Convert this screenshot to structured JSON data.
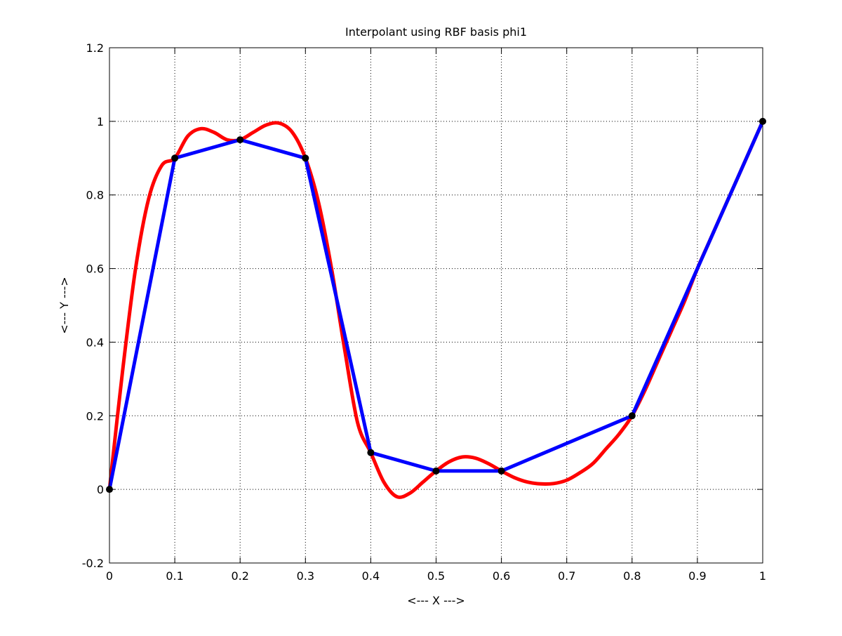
{
  "chart_data": {
    "type": "line",
    "title": "Interpolant using RBF basis phi1",
    "xlabel": "<--- X --->",
    "ylabel": "<--- Y --->",
    "xlim": [
      0,
      1
    ],
    "ylim": [
      -0.2,
      1.2
    ],
    "xticks": [
      0,
      0.1,
      0.2,
      0.3,
      0.4,
      0.5,
      0.6,
      0.7,
      0.8,
      0.9,
      1
    ],
    "xtick_labels": [
      "0",
      "0.1",
      "0.2",
      "0.3",
      "0.4",
      "0.5",
      "0.6",
      "0.7",
      "0.8",
      "0.9",
      "1"
    ],
    "yticks": [
      -0.2,
      0,
      0.2,
      0.4,
      0.6,
      0.8,
      1,
      1.2
    ],
    "ytick_labels": [
      "-0.2",
      "0",
      "0.2",
      "0.4",
      "0.6",
      "0.8",
      "1",
      "1.2"
    ],
    "grid": true,
    "legend": "none",
    "series": [
      {
        "color": "#ff0000",
        "style": "smooth-curve",
        "x": [
          0,
          0.02,
          0.04,
          0.06,
          0.08,
          0.1,
          0.12,
          0.14,
          0.16,
          0.18,
          0.2,
          0.22,
          0.24,
          0.26,
          0.28,
          0.3,
          0.32,
          0.34,
          0.36,
          0.38,
          0.4,
          0.42,
          0.44,
          0.46,
          0.48,
          0.5,
          0.52,
          0.54,
          0.56,
          0.58,
          0.6,
          0.62,
          0.64,
          0.66,
          0.68,
          0.7,
          0.72,
          0.74,
          0.76,
          0.78,
          0.8,
          0.82,
          0.84,
          0.86,
          0.88,
          0.9,
          0.92,
          0.94,
          0.96,
          0.98,
          1.0
        ],
        "y": [
          0,
          0.32,
          0.6,
          0.79,
          0.88,
          0.9,
          0.96,
          0.98,
          0.97,
          0.95,
          0.95,
          0.97,
          0.99,
          0.995,
          0.97,
          0.9,
          0.78,
          0.6,
          0.38,
          0.18,
          0.1,
          0.02,
          -0.02,
          -0.01,
          0.02,
          0.05,
          0.075,
          0.088,
          0.085,
          0.07,
          0.05,
          0.032,
          0.02,
          0.015,
          0.016,
          0.025,
          0.045,
          0.07,
          0.11,
          0.15,
          0.2,
          0.27,
          0.35,
          0.43,
          0.51,
          0.6,
          0.68,
          0.76,
          0.84,
          0.92,
          1.0
        ]
      },
      {
        "color": "#0000ff",
        "style": "piecewise-linear",
        "x": [
          0,
          0.1,
          0.2,
          0.3,
          0.4,
          0.5,
          0.6,
          0.8,
          1.0
        ],
        "y": [
          0,
          0.9,
          0.95,
          0.9,
          0.1,
          0.05,
          0.05,
          0.2,
          1.0
        ]
      },
      {
        "color": "#000000",
        "style": "markers",
        "x": [
          0,
          0.1,
          0.2,
          0.3,
          0.4,
          0.5,
          0.6,
          0.8,
          1.0
        ],
        "y": [
          0,
          0.9,
          0.95,
          0.9,
          0.1,
          0.05,
          0.05,
          0.2,
          1.0
        ]
      }
    ]
  }
}
